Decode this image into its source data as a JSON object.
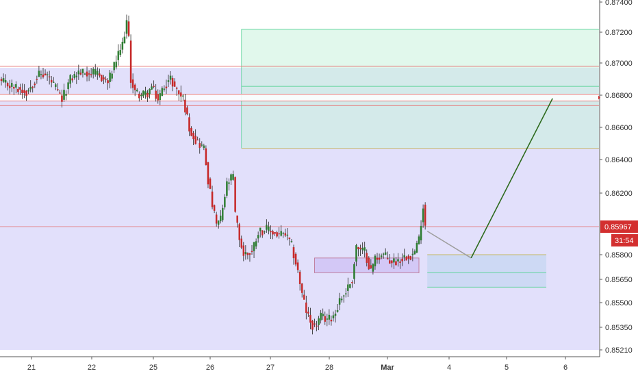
{
  "chart_data": {
    "type": "candlestick",
    "y_axis": {
      "ticks": [
        0.874,
        0.872,
        0.87,
        0.868,
        0.866,
        0.864,
        0.862,
        0.85967,
        0.858,
        0.8565,
        0.855,
        0.8535,
        0.8521
      ],
      "tick_labels": [
        "0.87400",
        "0.87200",
        "0.87000",
        "0.86800",
        "0.86600",
        "0.86400",
        "0.86200",
        "0.85967",
        "0.85800",
        "0.85650",
        "0.85500",
        "0.85350",
        "0.85210"
      ],
      "price_mapping": [
        [
          0.874,
          3
        ],
        [
          0.872,
          47
        ],
        [
          0.87,
          92
        ],
        [
          0.868,
          139
        ],
        [
          0.866,
          186
        ],
        [
          0.864,
          233
        ],
        [
          0.862,
          282
        ],
        [
          0.85967,
          331
        ],
        [
          0.858,
          372
        ],
        [
          0.8565,
          408
        ],
        [
          0.855,
          442
        ],
        [
          0.8535,
          478
        ],
        [
          0.8521,
          511
        ]
      ]
    },
    "x_axis": {
      "labels": [
        "21",
        "22",
        "25",
        "26",
        "27",
        "28",
        "Mar",
        "4",
        "5",
        "6"
      ],
      "label_x": [
        46,
        134,
        224,
        307,
        395,
        481,
        566,
        656,
        740,
        826
      ],
      "bold": [
        false,
        false,
        false,
        false,
        false,
        false,
        true,
        false,
        false,
        false
      ]
    },
    "current_price": {
      "label": "0.85967",
      "value": 0.85967,
      "countdown": "31:54",
      "color": "#d32f2f"
    },
    "colors": {
      "up": "#2e7d32",
      "down": "#c62828",
      "range_fill": "#e2e0fb",
      "target_fill": "#c8f2dc",
      "target_line": "#5fd39b",
      "trend_line": "#2e6b1e",
      "gray_line": "#9e9e9e",
      "resistance_line": "#e57373",
      "band_line": "#c8c080"
    },
    "anchors": [
      [
        0,
        0.8688
      ],
      [
        6,
        0.8685
      ],
      [
        12,
        0.8682
      ],
      [
        18,
        0.8693
      ],
      [
        22,
        0.8692
      ],
      [
        26,
        0.8684
      ],
      [
        29,
        0.8677
      ],
      [
        33,
        0.869
      ],
      [
        37,
        0.8694
      ],
      [
        41,
        0.8694
      ],
      [
        46,
        0.8693
      ],
      [
        51,
        0.8688
      ],
      [
        54,
        0.8698
      ],
      [
        58,
        0.8712
      ],
      [
        60,
        0.8727
      ],
      [
        61,
        0.8715
      ],
      [
        62,
        0.869
      ],
      [
        64,
        0.8682
      ],
      [
        67,
        0.868
      ],
      [
        70,
        0.8681
      ],
      [
        72,
        0.8685
      ],
      [
        75,
        0.8677
      ],
      [
        78,
        0.8686
      ],
      [
        81,
        0.869
      ],
      [
        84,
        0.8683
      ],
      [
        87,
        0.8678
      ],
      [
        90,
        0.866
      ],
      [
        93,
        0.8652
      ],
      [
        97,
        0.8647
      ],
      [
        99,
        0.8628
      ],
      [
        101,
        0.8612
      ],
      [
        103,
        0.8598
      ],
      [
        105,
        0.8602
      ],
      [
        108,
        0.8625
      ],
      [
        111,
        0.863
      ],
      [
        112,
        0.8605
      ],
      [
        114,
        0.859
      ],
      [
        116,
        0.858
      ],
      [
        120,
        0.8582
      ],
      [
        123,
        0.8594
      ],
      [
        127,
        0.8595
      ],
      [
        132,
        0.8592
      ],
      [
        136,
        0.8592
      ],
      [
        139,
        0.8585
      ],
      [
        142,
        0.857
      ],
      [
        144,
        0.8555
      ],
      [
        146,
        0.8545
      ],
      [
        148,
        0.8538
      ],
      [
        150,
        0.8535
      ],
      [
        153,
        0.8541
      ],
      [
        157,
        0.854
      ],
      [
        160,
        0.8544
      ],
      [
        162,
        0.8552
      ],
      [
        164,
        0.8555
      ],
      [
        166,
        0.856
      ],
      [
        168,
        0.8565
      ],
      [
        170,
        0.8585
      ],
      [
        172,
        0.8582
      ],
      [
        174,
        0.8582
      ],
      [
        177,
        0.857
      ],
      [
        179,
        0.8578
      ],
      [
        181,
        0.8579
      ],
      [
        183,
        0.858
      ],
      [
        186,
        0.8576
      ],
      [
        189,
        0.8576
      ],
      [
        192,
        0.8578
      ],
      [
        195,
        0.858
      ],
      [
        197,
        0.858
      ],
      [
        198,
        0.8582
      ],
      [
        200,
        0.8589
      ],
      [
        202,
        0.8611
      ],
      [
        203,
        0.8598
      ]
    ],
    "annotations": {
      "range_box": {
        "top": 0.8697,
        "bottom": 0.8521,
        "start_bar": 0,
        "end": "right",
        "fill": "#e2e0fb"
      },
      "resistance_zone": {
        "top": 0.8698,
        "bottom": 0.8692,
        "note": "pink lines near 0.8698 / 0.8692"
      },
      "resistance_line_white": {
        "price": 0.86785,
        "color": "#ffffff"
      },
      "target_box": {
        "top": 0.8722,
        "bottom": 0.8647,
        "start_bar": 115,
        "end_bar": "right",
        "fill": "#c8f2dc"
      },
      "target_inner_line": {
        "price": 0.86855
      },
      "entry_zone": {
        "top": 0.8578,
        "bottom": 0.8569,
        "start_bar": 150,
        "end_bar": 200
      },
      "projection_box": {
        "top": 0.858,
        "bottom": 0.856,
        "start_bar": 204,
        "end_bar": 261
      },
      "projection_path": [
        {
          "bar": 204,
          "price": 0.8594
        },
        {
          "bar": 225,
          "price": 0.8578
        },
        {
          "bar": 264,
          "price": 0.8678
        }
      ]
    }
  }
}
